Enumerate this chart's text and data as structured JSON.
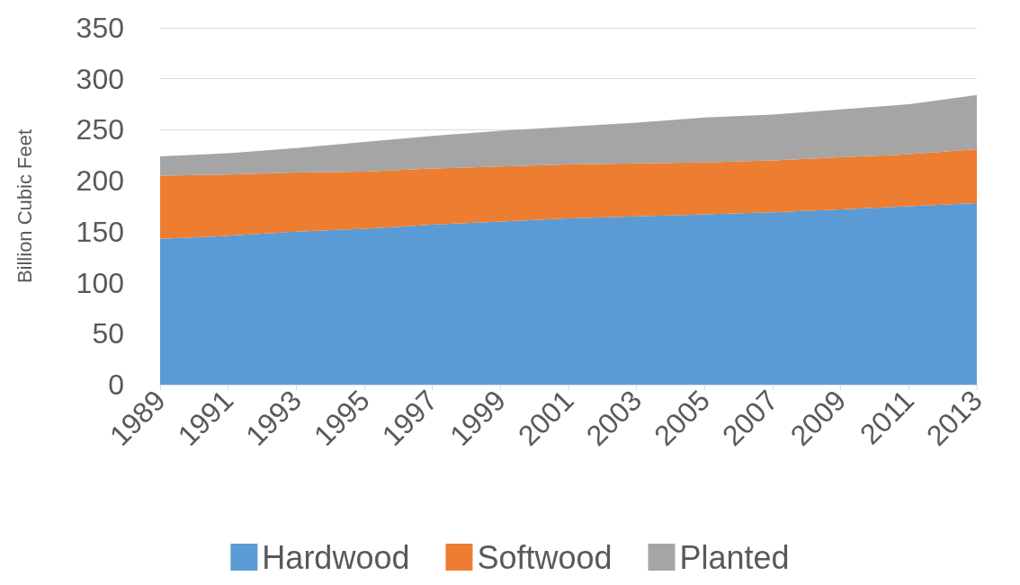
{
  "chart_data": {
    "type": "area",
    "stacked": true,
    "ylabel": "Billion Cubic Feet",
    "categories": [
      "1989",
      "1991",
      "1993",
      "1995",
      "1997",
      "1999",
      "2001",
      "2003",
      "2005",
      "2007",
      "2009",
      "2011",
      "2013"
    ],
    "series": [
      {
        "name": "Hardwood",
        "color": "#5b9bd5",
        "values": [
          143,
          146,
          150,
          153,
          157,
          160,
          163,
          165,
          167,
          169,
          172,
          175,
          178
        ]
      },
      {
        "name": "Softwood",
        "color": "#ed7d31",
        "values": [
          62,
          60,
          58,
          56,
          55,
          54,
          53,
          52,
          51,
          51,
          51,
          51,
          53
        ]
      },
      {
        "name": "Planted",
        "color": "#a5a5a5",
        "values": [
          19,
          21,
          24,
          29,
          32,
          35,
          37,
          40,
          44,
          45,
          47,
          49,
          53
        ]
      }
    ],
    "ylim": [
      0,
      350
    ],
    "yticks": [
      0,
      50,
      100,
      150,
      200,
      250,
      300,
      350
    ],
    "grid": "y",
    "legend": "bottom"
  }
}
